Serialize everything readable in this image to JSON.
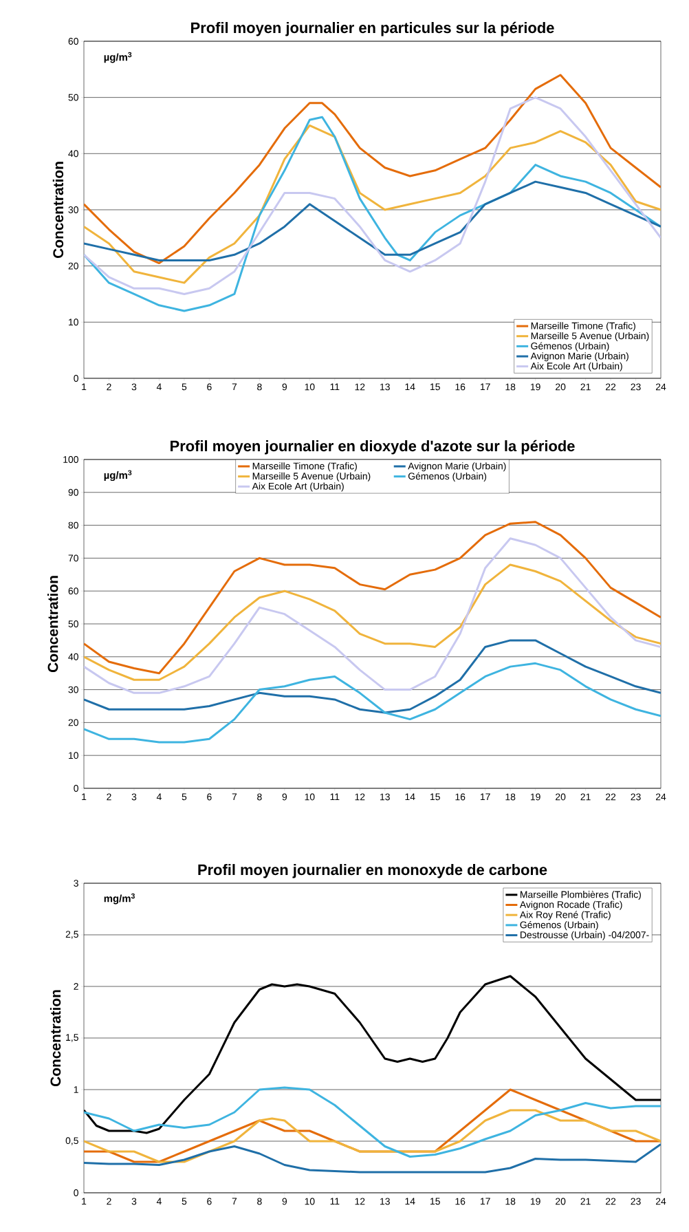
{
  "chart_data": [
    {
      "type": "line",
      "title": "Profil moyen journalier en particules sur la période",
      "ylabel": "Concentration",
      "annotations": [
        "µg/m$^{3}$"
      ],
      "x": [
        1,
        2,
        3,
        4,
        5,
        6,
        7,
        8,
        9,
        10,
        11,
        12,
        13,
        14,
        15,
        16,
        17,
        18,
        19,
        20,
        21,
        22,
        23,
        24
      ],
      "xlim": [
        1,
        24
      ],
      "ylim": [
        0,
        60
      ],
      "xticks": [
        1,
        2,
        3,
        4,
        5,
        6,
        7,
        8,
        9,
        10,
        11,
        12,
        13,
        14,
        15,
        16,
        17,
        18,
        19,
        20,
        21,
        22,
        23,
        24
      ],
      "yticks": [
        0,
        10,
        20,
        30,
        40,
        50,
        60
      ],
      "grid": "y",
      "legend": "bottom right",
      "series": [
        {
          "name": "Marseille Timone (Trafic)",
          "color": "#e46c0a",
          "x": [
            1,
            2,
            3,
            4,
            5,
            6,
            7,
            8,
            9,
            10,
            10.5,
            11,
            12,
            13,
            14,
            15,
            16,
            17,
            18,
            19,
            20,
            21,
            22,
            23,
            24
          ],
          "values": [
            31,
            26.5,
            22.5,
            20.5,
            23.5,
            28.5,
            33,
            38,
            44.5,
            49,
            49,
            47,
            41,
            37.5,
            36,
            37,
            39,
            41,
            46,
            51.5,
            54,
            49,
            41,
            37.5,
            34
          ]
        },
        {
          "name": "Marseille 5 Avenue (Urbain)",
          "color": "#f0b43c",
          "values": [
            27,
            24,
            19,
            18,
            17,
            21.5,
            24,
            29,
            39,
            45,
            43,
            33,
            30,
            31,
            32,
            33,
            36,
            41,
            42,
            44,
            42,
            38,
            31.5,
            30
          ]
        },
        {
          "name": "Gémenos (Urbain)",
          "color": "#3eb4e0",
          "x": [
            1,
            2,
            3,
            4,
            5,
            6,
            7,
            8,
            9,
            10,
            10.5,
            11,
            12,
            13,
            13.5,
            14,
            15,
            16,
            17,
            18,
            19,
            20,
            21,
            22,
            23,
            24
          ],
          "values": [
            22,
            17,
            15,
            13,
            12,
            13,
            15,
            29,
            37,
            46,
            46.5,
            43,
            32,
            25,
            22,
            21,
            26,
            29,
            31,
            33,
            38,
            36,
            35,
            33,
            30,
            27
          ]
        },
        {
          "name": "Avignon Marie (Urbain)",
          "color": "#1f6fa8",
          "values": [
            24,
            23,
            22,
            21,
            21,
            21,
            22,
            24,
            27,
            31,
            28,
            25,
            22,
            22,
            24,
            26,
            31,
            33,
            35,
            34,
            33,
            31,
            29,
            27
          ]
        },
        {
          "name": "Aix Ecole Art (Urbain)",
          "color": "#c8c8f0",
          "values": [
            22,
            18,
            16,
            16,
            15,
            16,
            19,
            26,
            33,
            33,
            32,
            27,
            21,
            19,
            21,
            24,
            35,
            48,
            50,
            48,
            43,
            37,
            31,
            25
          ]
        }
      ]
    },
    {
      "type": "line",
      "title": "Profil moyen journalier en dioxyde d'azote sur la période",
      "ylabel": "Concentration",
      "annotations": [
        "µg/m$^{3}$"
      ],
      "x": [
        1,
        2,
        3,
        4,
        5,
        6,
        7,
        8,
        9,
        10,
        11,
        12,
        13,
        14,
        15,
        16,
        17,
        18,
        19,
        20,
        21,
        22,
        23,
        24
      ],
      "xlim": [
        1,
        24
      ],
      "ylim": [
        0,
        100
      ],
      "xticks": [
        1,
        2,
        3,
        4,
        5,
        6,
        7,
        8,
        9,
        10,
        11,
        12,
        13,
        14,
        15,
        16,
        17,
        18,
        19,
        20,
        21,
        22,
        23,
        24
      ],
      "yticks": [
        0,
        10,
        20,
        30,
        40,
        50,
        60,
        70,
        80,
        90,
        100
      ],
      "grid": "y",
      "legend": "top",
      "series": [
        {
          "name": "Marseille Timone (Trafic)",
          "color": "#e46c0a",
          "values": [
            44,
            38.5,
            36.5,
            35,
            44,
            55,
            66,
            70,
            68,
            68,
            67,
            62,
            60.5,
            65,
            66.5,
            70,
            77,
            80.5,
            81,
            77,
            70,
            61,
            56.5,
            52
          ]
        },
        {
          "name": "Avignon Marie (Urbain)",
          "color": "#1f6fa8",
          "values": [
            27,
            24,
            24,
            24,
            24,
            25,
            27,
            29,
            28,
            28,
            27,
            24,
            23,
            24,
            28,
            33,
            43,
            45,
            45,
            41,
            37,
            34,
            31,
            29
          ]
        },
        {
          "name": "Marseille 5 Avenue (Urbain)",
          "color": "#f0b43c",
          "values": [
            40,
            36,
            33,
            33,
            37,
            44,
            52,
            58,
            60,
            57.5,
            54,
            47,
            44,
            44,
            43,
            49,
            62,
            68,
            66,
            63,
            57,
            51,
            46,
            44
          ]
        },
        {
          "name": "Gémenos (Urbain)",
          "color": "#3eb4e0",
          "values": [
            18,
            15,
            15,
            14,
            14,
            15,
            21,
            30,
            31,
            33,
            34,
            29,
            23,
            21,
            24,
            29,
            34,
            37,
            38,
            36,
            31,
            27,
            24,
            22
          ]
        },
        {
          "name": "Aix Ecole Art (Urbain)",
          "color": "#c8c8f0",
          "values": [
            37,
            32,
            29,
            29,
            31,
            34,
            44,
            55,
            53,
            48,
            43,
            36,
            30,
            30,
            34,
            47,
            67,
            76,
            74,
            70,
            61,
            52,
            45,
            43
          ]
        }
      ]
    },
    {
      "type": "line",
      "title": "Profil moyen journalier en monoxyde de carbone",
      "ylabel": "Concentration",
      "annotations": [
        "mg/m$^{3}$"
      ],
      "x": [
        1,
        2,
        3,
        4,
        5,
        6,
        7,
        8,
        9,
        10,
        11,
        12,
        13,
        14,
        15,
        16,
        17,
        18,
        19,
        20,
        21,
        22,
        23,
        24
      ],
      "xlim": [
        1,
        24
      ],
      "ylim": [
        0,
        3
      ],
      "xticks": [
        1,
        2,
        3,
        4,
        5,
        6,
        7,
        8,
        9,
        10,
        11,
        12,
        13,
        14,
        15,
        16,
        17,
        18,
        19,
        20,
        21,
        22,
        23,
        24
      ],
      "yticks": [
        0,
        {
          "value": 0.5,
          "label": "0,5"
        },
        1,
        {
          "value": 1.5,
          "label": "1,5"
        },
        2,
        {
          "value": 2.5,
          "label": "2,5"
        },
        3
      ],
      "grid": "y",
      "legend": "top right",
      "series": [
        {
          "name": "Marseille Plombières (Trafic)",
          "color": "#000000",
          "x": [
            1,
            1.5,
            2,
            3,
            3.5,
            4,
            5,
            6,
            6.5,
            7,
            8,
            8.5,
            9,
            9.5,
            10,
            11,
            12,
            13,
            13.5,
            14,
            14.5,
            15,
            15.5,
            16,
            17,
            18,
            19,
            20,
            21,
            22,
            23,
            24
          ],
          "values": [
            0.8,
            0.65,
            0.6,
            0.6,
            0.58,
            0.62,
            0.9,
            1.15,
            1.4,
            1.65,
            1.97,
            2.02,
            2.0,
            2.02,
            2.0,
            1.93,
            1.65,
            1.3,
            1.27,
            1.3,
            1.27,
            1.3,
            1.5,
            1.75,
            2.02,
            2.1,
            1.9,
            1.6,
            1.3,
            1.1,
            0.9,
            0.9
          ]
        },
        {
          "name": "Avignon Rocade (Trafic)",
          "color": "#e46c0a",
          "values": [
            0.4,
            0.4,
            0.3,
            0.3,
            0.4,
            0.5,
            0.6,
            0.7,
            0.6,
            0.6,
            0.5,
            0.4,
            0.4,
            0.4,
            0.4,
            0.6,
            0.8,
            1.0,
            0.9,
            0.8,
            0.7,
            0.6,
            0.5,
            0.5
          ]
        },
        {
          "name": "Aix Roy René (Trafic)",
          "color": "#f0b43c",
          "x": [
            1,
            2,
            3,
            4,
            5,
            6,
            7,
            8,
            8.5,
            9,
            10,
            11,
            12,
            13,
            14,
            15,
            16,
            17,
            18,
            19,
            20,
            21,
            22,
            23,
            24
          ],
          "values": [
            0.5,
            0.4,
            0.4,
            0.3,
            0.3,
            0.4,
            0.5,
            0.7,
            0.72,
            0.7,
            0.5,
            0.5,
            0.4,
            0.4,
            0.4,
            0.4,
            0.5,
            0.7,
            0.8,
            0.8,
            0.7,
            0.7,
            0.6,
            0.6,
            0.5
          ]
        },
        {
          "name": "Gémenos (Urbain)",
          "color": "#3eb4e0",
          "values": [
            0.78,
            0.72,
            0.6,
            0.66,
            0.63,
            0.66,
            0.78,
            1.0,
            1.02,
            1.0,
            0.85,
            0.65,
            0.45,
            0.35,
            0.37,
            0.43,
            0.52,
            0.6,
            0.75,
            0.8,
            0.87,
            0.82,
            0.84,
            0.84
          ]
        },
        {
          "name": "Destrousse (Urbain) -04/2007-",
          "color": "#1f6fa8",
          "values": [
            0.29,
            0.28,
            0.28,
            0.27,
            0.32,
            0.4,
            0.45,
            0.38,
            0.27,
            0.22,
            0.21,
            0.2,
            0.2,
            0.2,
            0.2,
            0.2,
            0.2,
            0.24,
            0.33,
            0.32,
            0.32,
            0.31,
            0.3,
            0.47
          ]
        }
      ]
    }
  ]
}
